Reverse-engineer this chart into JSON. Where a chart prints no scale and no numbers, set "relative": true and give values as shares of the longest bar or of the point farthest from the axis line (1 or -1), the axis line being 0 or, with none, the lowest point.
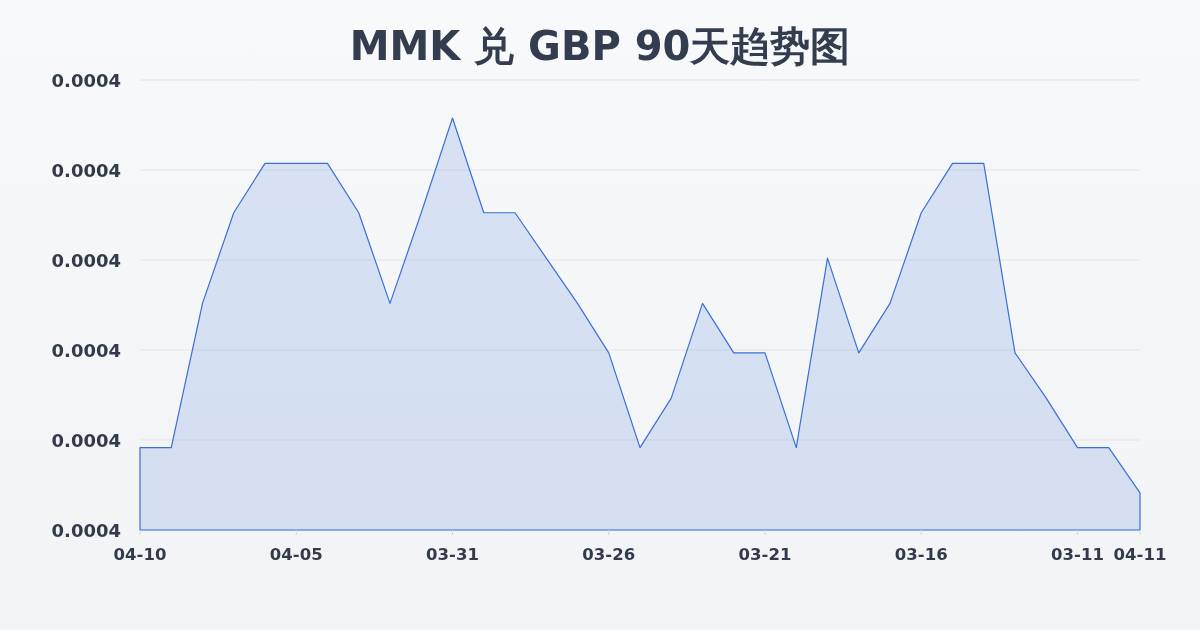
{
  "chart_data": {
    "type": "area",
    "title": "MMK 兑 GBP 90天趋势图",
    "categories": [
      "04-10",
      null,
      null,
      null,
      null,
      "04-05",
      null,
      null,
      null,
      null,
      "03-31",
      null,
      null,
      null,
      null,
      "03-26",
      null,
      null,
      null,
      null,
      "03-21",
      null,
      null,
      null,
      null,
      "03-16",
      null,
      null,
      null,
      null,
      "03-11",
      null,
      "04-11"
    ],
    "values": [
      0.2,
      0.2,
      0.55,
      0.77,
      0.89,
      0.89,
      0.89,
      0.77,
      0.55,
      0.77,
      1,
      0.77,
      0.77,
      0.66,
      0.55,
      0.43,
      0.2,
      0.32,
      0.55,
      0.43,
      0.43,
      0.2,
      0.66,
      0.43,
      0.55,
      0.77,
      0.89,
      0.89,
      0.43,
      0.32,
      0.2,
      0.2,
      0.09
    ],
    "color": "#3a6fd8",
    "relative": true,
    "annotations": [
      "0.0004",
      "0.0004",
      "0.0004",
      "0.0004",
      "0.0004",
      "0.0004"
    ],
    "grid": "y"
  }
}
